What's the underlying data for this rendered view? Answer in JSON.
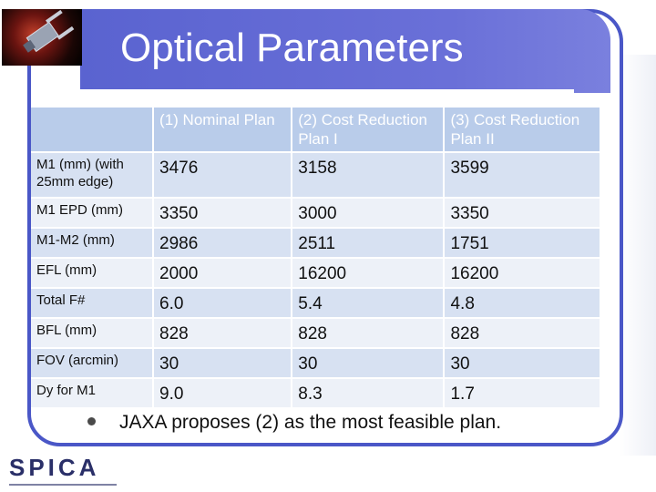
{
  "title": "Optical Parameters",
  "table": {
    "headers": [
      "",
      "(1) Nominal Plan",
      "(2) Cost Reduction Plan I",
      "(3) Cost Reduction Plan II"
    ],
    "rows": [
      {
        "label": "M1 (mm) (with 25mm edge)",
        "values": [
          "3476",
          "3158",
          "3599"
        ]
      },
      {
        "label": "M1 EPD (mm)",
        "values": [
          "3350",
          "3000",
          "3350"
        ]
      },
      {
        "label": "M1-M2 (mm)",
        "values": [
          "2986",
          "2511",
          "1751"
        ]
      },
      {
        "label": "EFL (mm)",
        "values": [
          "2000",
          "16200",
          "16200"
        ]
      },
      {
        "label": "Total F#",
        "values": [
          "6.0",
          "5.4",
          "4.8"
        ]
      },
      {
        "label": "BFL (mm)",
        "values": [
          "828",
          "828",
          "828"
        ]
      },
      {
        "label": "FOV (arcmin)",
        "values": [
          "30",
          "30",
          "30"
        ]
      },
      {
        "label": "Dy for M1",
        "values": [
          "9.0",
          "8.3",
          "1.7"
        ]
      }
    ]
  },
  "bullet": "JAXA proposes (2) as the most feasible plan.",
  "logo": {
    "text": "SPICA"
  },
  "colors": {
    "accent": "#5a63d0",
    "header": "#b9ccea",
    "row_dark": "#d7e1f2",
    "row_light": "#edf1f8"
  },
  "icons": {
    "thumbnail": "telescope-thumbnail",
    "bullet": "bullet-dot-icon"
  }
}
